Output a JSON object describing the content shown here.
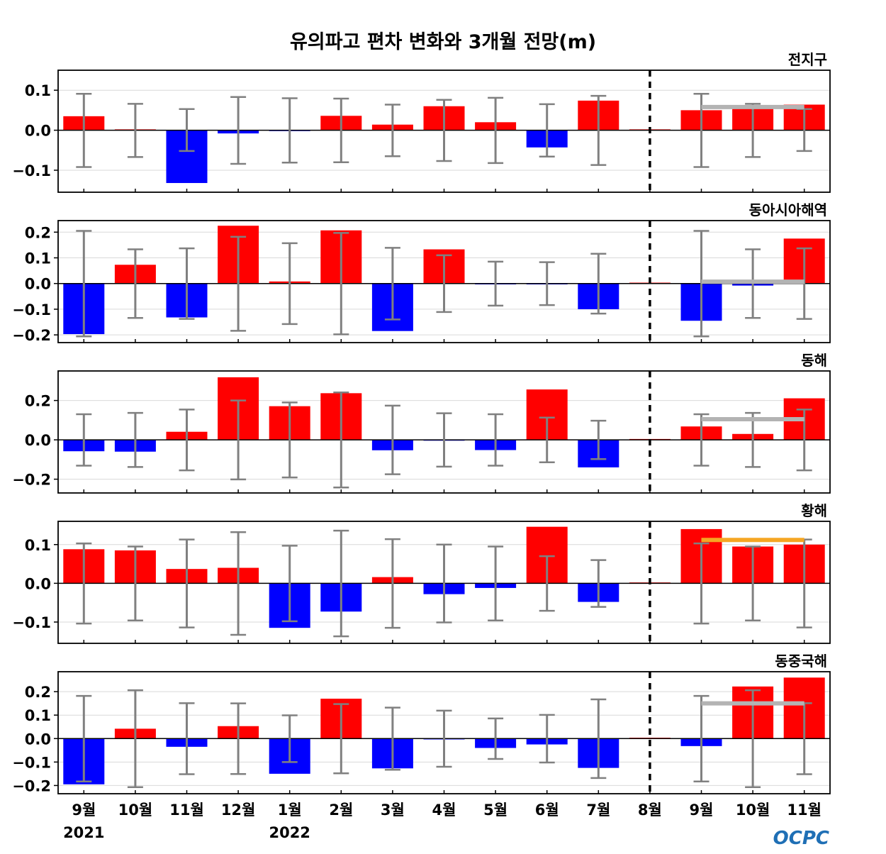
{
  "title": "유의파고 편차 변화와 3개월 전망(m)",
  "logo_text": "OCPC",
  "colors": {
    "positive": "#ff0000",
    "negative": "#0000ff",
    "errorbar": "#808080",
    "outlook_line": "#b3b3b3",
    "outlook_line_highlight": "#f5a623",
    "grid": "#d9d9d9",
    "logo": "#1f6fb5"
  },
  "x_axis": {
    "month_labels": [
      "9월",
      "10월",
      "11월",
      "12월",
      "1월",
      "2월",
      "3월",
      "4월",
      "5월",
      "6월",
      "7월",
      "8월",
      "9월",
      "10월",
      "11월"
    ],
    "year_labels": [
      {
        "index": 0,
        "label": "2021"
      },
      {
        "index": 4,
        "label": "2022"
      }
    ],
    "outlook_divider_index": 11
  },
  "chart_data": [
    {
      "type": "bar",
      "region": "전지구",
      "ylim": [
        -0.155,
        0.15
      ],
      "yticks": [
        -0.1,
        0.0,
        0.1
      ],
      "ytick_labels": [
        "−0.1",
        "0.0",
        "0.1"
      ],
      "values": [
        0.035,
        0.002,
        -0.132,
        -0.008,
        -0.002,
        0.036,
        0.014,
        0.06,
        0.02,
        -0.043,
        0.074,
        0.0,
        0.05,
        0.06,
        0.064
      ],
      "err_low": [
        -0.092,
        -0.067,
        -0.052,
        -0.084,
        -0.081,
        -0.08,
        -0.065,
        -0.077,
        -0.082,
        -0.066,
        -0.087,
        null,
        -0.092,
        -0.067,
        -0.052
      ],
      "err_high": [
        0.091,
        0.066,
        0.053,
        0.083,
        0.08,
        0.079,
        0.064,
        0.076,
        0.081,
        0.065,
        0.086,
        null,
        0.091,
        0.066,
        0.053
      ],
      "outlook_line": {
        "value": 0.058,
        "from_index": 12,
        "to_index": 14,
        "highlight": false
      }
    },
    {
      "type": "bar",
      "region": "동아시아해역",
      "ylim": [
        -0.23,
        0.245
      ],
      "yticks": [
        -0.2,
        -0.1,
        0.0,
        0.1,
        0.2
      ],
      "ytick_labels": [
        "−0.2",
        "−0.1",
        "0.0",
        "0.1",
        "0.2"
      ],
      "values": [
        -0.197,
        0.073,
        -0.132,
        0.225,
        0.008,
        0.207,
        -0.185,
        0.133,
        -0.002,
        -0.003,
        -0.1,
        0.0,
        -0.145,
        -0.008,
        0.175
      ],
      "err_low": [
        -0.206,
        -0.134,
        -0.138,
        -0.184,
        -0.158,
        -0.198,
        -0.14,
        -0.111,
        -0.086,
        -0.084,
        -0.117,
        null,
        -0.206,
        -0.134,
        -0.138
      ],
      "err_high": [
        0.205,
        0.133,
        0.137,
        0.182,
        0.157,
        0.197,
        0.139,
        0.11,
        0.085,
        0.083,
        0.116,
        null,
        0.205,
        0.133,
        0.137
      ],
      "outlook_line": {
        "value": 0.007,
        "from_index": 12,
        "to_index": 14,
        "highlight": false
      }
    },
    {
      "type": "bar",
      "region": "동해",
      "ylim": [
        -0.27,
        0.35
      ],
      "yticks": [
        -0.2,
        0.0,
        0.2
      ],
      "ytick_labels": [
        "−0.2",
        "0.0",
        "0.2"
      ],
      "values": [
        -0.058,
        -0.06,
        0.041,
        0.318,
        0.171,
        0.237,
        -0.053,
        -0.002,
        -0.052,
        0.256,
        -0.14,
        0.0,
        0.068,
        0.03,
        0.211
      ],
      "err_low": [
        -0.131,
        -0.138,
        -0.155,
        -0.201,
        -0.191,
        -0.242,
        -0.175,
        -0.136,
        -0.131,
        -0.114,
        -0.098,
        null,
        -0.131,
        -0.138,
        -0.155
      ],
      "err_high": [
        0.13,
        0.137,
        0.154,
        0.2,
        0.19,
        0.241,
        0.174,
        0.135,
        0.13,
        0.113,
        0.097,
        null,
        0.13,
        0.137,
        0.154
      ],
      "outlook_line": {
        "value": 0.105,
        "from_index": 12,
        "to_index": 14,
        "highlight": false
      }
    },
    {
      "type": "bar",
      "region": "황해",
      "ylim": [
        -0.155,
        0.16
      ],
      "yticks": [
        -0.1,
        0.0,
        0.1
      ],
      "ytick_labels": [
        "−0.1",
        "0.0",
        "0.1"
      ],
      "values": [
        0.088,
        0.085,
        0.037,
        0.04,
        -0.115,
        -0.073,
        0.016,
        -0.028,
        -0.012,
        0.146,
        -0.048,
        0.0,
        0.14,
        0.095,
        0.1
      ],
      "err_low": [
        -0.104,
        -0.096,
        -0.114,
        -0.133,
        -0.098,
        -0.137,
        -0.115,
        -0.101,
        -0.096,
        -0.071,
        -0.061,
        null,
        -0.104,
        -0.096,
        -0.114
      ],
      "err_high": [
        0.103,
        0.095,
        0.113,
        0.132,
        0.097,
        0.136,
        0.114,
        0.1,
        0.095,
        0.07,
        0.06,
        null,
        0.103,
        0.095,
        0.113
      ],
      "outlook_line": {
        "value": 0.112,
        "from_index": 12,
        "to_index": 14,
        "highlight": true
      }
    },
    {
      "type": "bar",
      "region": "동중국해",
      "ylim": [
        -0.235,
        0.285
      ],
      "yticks": [
        -0.2,
        -0.1,
        0.0,
        0.1,
        0.2
      ],
      "ytick_labels": [
        "−0.2",
        "−0.1",
        "0.0",
        "0.1",
        "0.2"
      ],
      "values": [
        -0.195,
        0.042,
        -0.035,
        0.053,
        -0.15,
        0.17,
        -0.127,
        -0.002,
        -0.04,
        -0.025,
        -0.125,
        0.0,
        -0.032,
        0.222,
        0.26
      ],
      "err_low": [
        -0.183,
        -0.207,
        -0.152,
        -0.151,
        -0.1,
        -0.148,
        -0.133,
        -0.12,
        -0.087,
        -0.102,
        -0.168,
        null,
        -0.183,
        -0.207,
        -0.152
      ],
      "err_high": [
        0.182,
        0.206,
        0.151,
        0.15,
        0.099,
        0.147,
        0.132,
        0.119,
        0.086,
        0.101,
        0.167,
        null,
        0.182,
        0.206,
        0.151
      ],
      "outlook_line": {
        "value": 0.15,
        "from_index": 12,
        "to_index": 14,
        "highlight": false
      }
    }
  ]
}
